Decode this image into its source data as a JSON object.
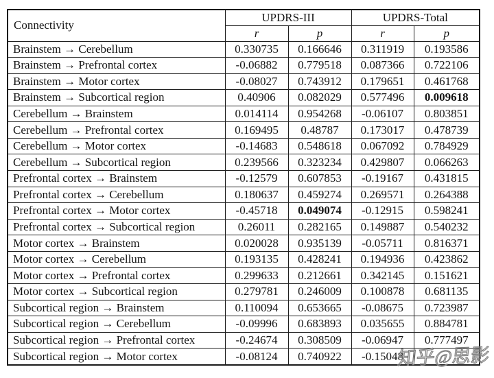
{
  "table": {
    "col1_header": "Connectivity",
    "group_headers": [
      {
        "label": "UPDRS-III"
      },
      {
        "label": "UPDRS-Total"
      }
    ],
    "sub_headers": [
      "r",
      "p",
      "r",
      "p"
    ],
    "rows": [
      {
        "label": "Brainstem → Cerebellum",
        "r1": "0.330735",
        "p1": "0.166646",
        "r2": "0.311919",
        "p2": "0.193586",
        "bold": null
      },
      {
        "label": "Brainstem → Prefrontal cortex",
        "r1": "-0.06882",
        "p1": "0.779518",
        "r2": "0.087366",
        "p2": "0.722106",
        "bold": null
      },
      {
        "label": "Brainstem → Motor cortex",
        "r1": "-0.08027",
        "p1": "0.743912",
        "r2": "0.179651",
        "p2": "0.461768",
        "bold": null
      },
      {
        "label": "Brainstem → Subcortical region",
        "r1": "0.40906",
        "p1": "0.082029",
        "r2": "0.577496",
        "p2": "0.009618",
        "bold": "p2"
      },
      {
        "label": "Cerebellum → Brainstem",
        "r1": "0.014114",
        "p1": "0.954268",
        "r2": "-0.06107",
        "p2": "0.803851",
        "bold": null
      },
      {
        "label": "Cerebellum → Prefrontal cortex",
        "r1": "0.169495",
        "p1": "0.48787",
        "r2": "0.173017",
        "p2": "0.478739",
        "bold": null
      },
      {
        "label": "Cerebellum → Motor cortex",
        "r1": "-0.14683",
        "p1": "0.548618",
        "r2": "0.067092",
        "p2": "0.784929",
        "bold": null
      },
      {
        "label": "Cerebellum → Subcortical region",
        "r1": "0.239566",
        "p1": "0.323234",
        "r2": "0.429807",
        "p2": "0.066263",
        "bold": null
      },
      {
        "label": "Prefrontal cortex → Brainstem",
        "r1": "-0.12579",
        "p1": "0.607853",
        "r2": "-0.19167",
        "p2": "0.431815",
        "bold": null
      },
      {
        "label": "Prefrontal cortex → Cerebellum",
        "r1": "0.180637",
        "p1": "0.459274",
        "r2": "0.269571",
        "p2": "0.264388",
        "bold": null
      },
      {
        "label": "Prefrontal cortex → Motor cortex",
        "r1": "-0.45718",
        "p1": "0.049074",
        "r2": "-0.12915",
        "p2": "0.598241",
        "bold": "p1"
      },
      {
        "label": "Prefrontal cortex → Subcortical region",
        "r1": "0.26011",
        "p1": "0.282165",
        "r2": "0.149887",
        "p2": "0.540232",
        "bold": null
      },
      {
        "label": "Motor cortex → Brainstem",
        "r1": "0.020028",
        "p1": "0.935139",
        "r2": "-0.05711",
        "p2": "0.816371",
        "bold": null
      },
      {
        "label": "Motor cortex → Cerebellum",
        "r1": "0.193135",
        "p1": "0.428241",
        "r2": "0.194936",
        "p2": "0.423862",
        "bold": null
      },
      {
        "label": "Motor cortex → Prefrontal cortex",
        "r1": "0.299633",
        "p1": "0.212661",
        "r2": "0.342145",
        "p2": "0.151621",
        "bold": null
      },
      {
        "label": "Motor cortex → Subcortical region",
        "r1": "0.279781",
        "p1": "0.246009",
        "r2": "0.100878",
        "p2": "0.681135",
        "bold": null
      },
      {
        "label": "Subcortical region → Brainstem",
        "r1": "0.110094",
        "p1": "0.653665",
        "r2": "-0.08675",
        "p2": "0.723987",
        "bold": null
      },
      {
        "label": "Subcortical region → Cerebellum",
        "r1": "-0.09996",
        "p1": "0.683893",
        "r2": "0.035655",
        "p2": "0.884781",
        "bold": null
      },
      {
        "label": "Subcortical region → Prefrontal cortex",
        "r1": "-0.24674",
        "p1": "0.308509",
        "r2": "-0.06947",
        "p2": "0.777497",
        "bold": null
      },
      {
        "label": "Subcortical region → Motor cortex",
        "r1": "-0.08124",
        "p1": "0.740922",
        "r2": "-0.15048",
        "p2": "",
        "bold": null,
        "p2_obscured_by_watermark": true
      }
    ]
  },
  "watermark": {
    "text": "知乎@思影",
    "color": "#7f7f7f"
  }
}
